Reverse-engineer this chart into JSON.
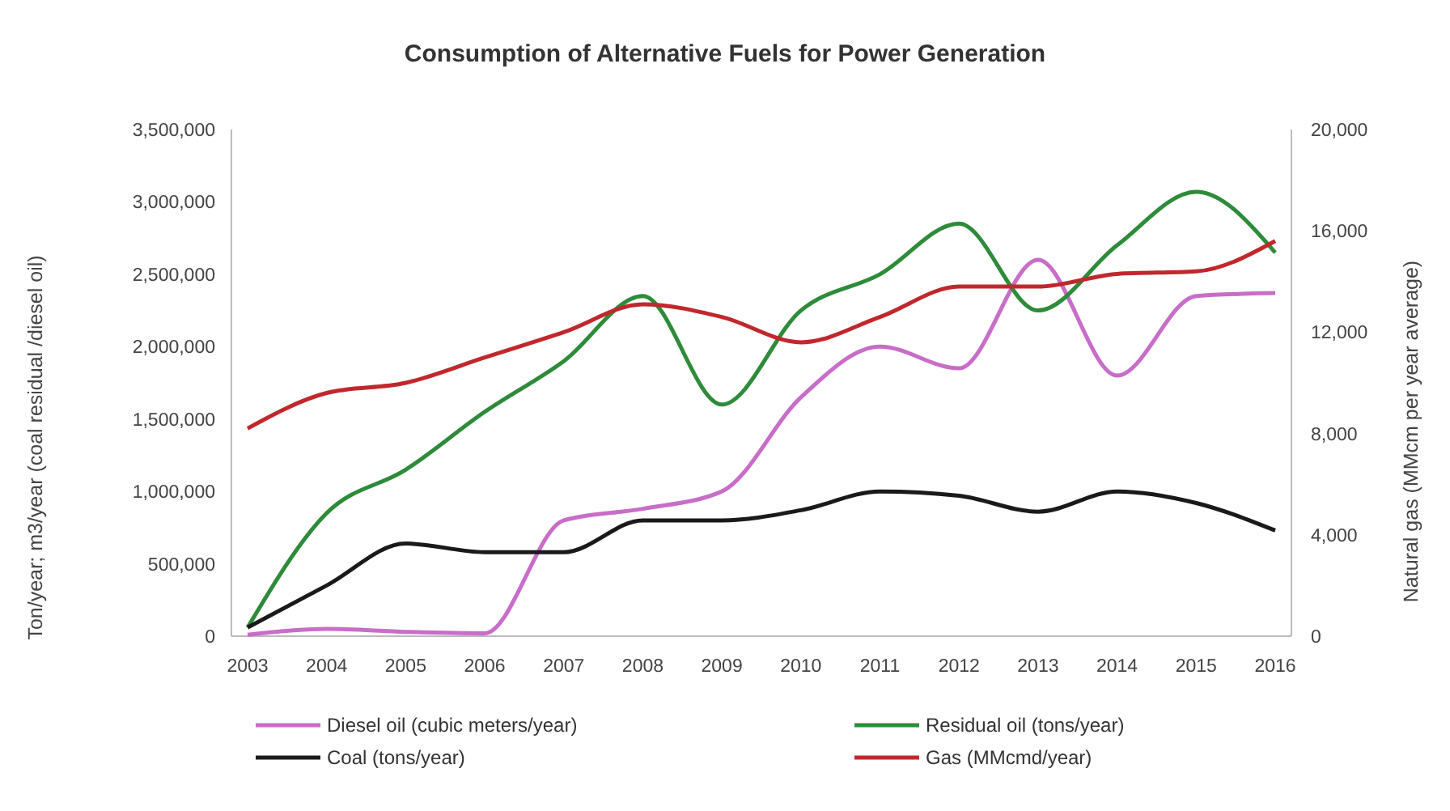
{
  "chart_data": {
    "type": "line",
    "title": "Consumption of Alternative Fuels for Power Generation",
    "ylabel": "Ton/year; m3/year (coal residual /diesel oil)",
    "y2label": "Natural  gas (MMcm per year average)",
    "categories": [
      "2003",
      "2004",
      "2005",
      "2006",
      "2007",
      "2008",
      "2009",
      "2010",
      "2011",
      "2012",
      "2013",
      "2014",
      "2015",
      "2016"
    ],
    "series": [
      {
        "name": "Diesel oil (cubic meters/year)",
        "color": "#c86dc8",
        "values": [
          10000,
          50000,
          30000,
          20000,
          800000,
          880000,
          1000000,
          1650000,
          2000000,
          1850000,
          2600000,
          1800000,
          2350000,
          2370000
        ]
      },
      {
        "name": "Residual oil (tons/year)",
        "color": "#2e8b3a",
        "values": [
          60000,
          850000,
          1150000,
          1550000,
          1900000,
          2350000,
          1600000,
          2250000,
          2500000,
          2850000,
          2250000,
          2700000,
          3070000,
          2650000
        ]
      },
      {
        "name": "Coal (tons/year)",
        "color": "#1a1a1a",
        "values": [
          60000,
          350000,
          640000,
          580000,
          580000,
          800000,
          800000,
          870000,
          1000000,
          970000,
          860000,
          1000000,
          920000,
          730000
        ]
      },
      {
        "name": "Gas (MMcmd/year)",
        "color": "#c0282d",
        "axis": "y2",
        "values": [
          8200,
          9600,
          10000,
          11000,
          12000,
          13100,
          12600,
          11600,
          12600,
          13800,
          13800,
          14300,
          14400,
          15600
        ]
      }
    ],
    "ylim": [
      0,
      3500000
    ],
    "yticks": [
      {
        "value": 0,
        "label": "0"
      },
      {
        "value": 500000,
        "label": "500,000"
      },
      {
        "value": 1000000,
        "label": "1,000,000"
      },
      {
        "value": 1500000,
        "label": "1,500,000"
      },
      {
        "value": 2000000,
        "label": "2,000,000"
      },
      {
        "value": 2500000,
        "label": "2,500,000"
      },
      {
        "value": 3000000,
        "label": "3,000,000"
      },
      {
        "value": 3500000,
        "label": "3,500,000"
      }
    ],
    "y2lim": [
      0,
      20000
    ],
    "y2ticks": [
      {
        "value": 0,
        "label": "0"
      },
      {
        "value": 4000,
        "label": "4,000"
      },
      {
        "value": 8000,
        "label": "8,000"
      },
      {
        "value": 12000,
        "label": "12,000"
      },
      {
        "value": 16000,
        "label": "16,000"
      },
      {
        "value": 20000,
        "label": "20,000"
      }
    ],
    "legend": "bottom",
    "grid": false,
    "marker": "none",
    "line_style": "solid"
  }
}
